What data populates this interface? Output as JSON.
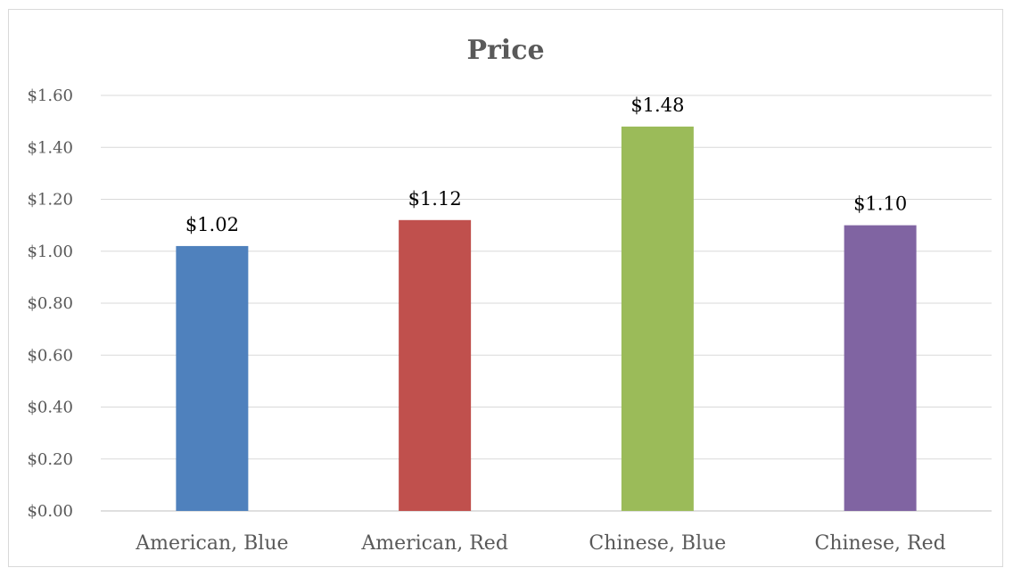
{
  "chart_data": {
    "type": "bar",
    "title": "Price",
    "xlabel": "",
    "ylabel": "",
    "categories": [
      "American, Blue",
      "American, Red",
      "Chinese, Blue",
      "Chinese, Red"
    ],
    "values": [
      1.02,
      1.12,
      1.48,
      1.1
    ],
    "data_labels": [
      "$1.02",
      "$1.12",
      "$1.48",
      "$1.10"
    ],
    "bar_colors": [
      "#4f81bd",
      "#c0504d",
      "#9bbb59",
      "#8064a2"
    ],
    "ylim": [
      0,
      1.6
    ],
    "y_ticks": [
      0,
      0.2,
      0.4,
      0.6,
      0.8,
      1.0,
      1.2,
      1.4,
      1.6
    ],
    "y_tick_labels": [
      "$0.00",
      "$0.20",
      "$0.40",
      "$0.60",
      "$0.80",
      "$1.00",
      "$1.20",
      "$1.40",
      "$1.60"
    ],
    "grid": true,
    "legend": "none"
  }
}
